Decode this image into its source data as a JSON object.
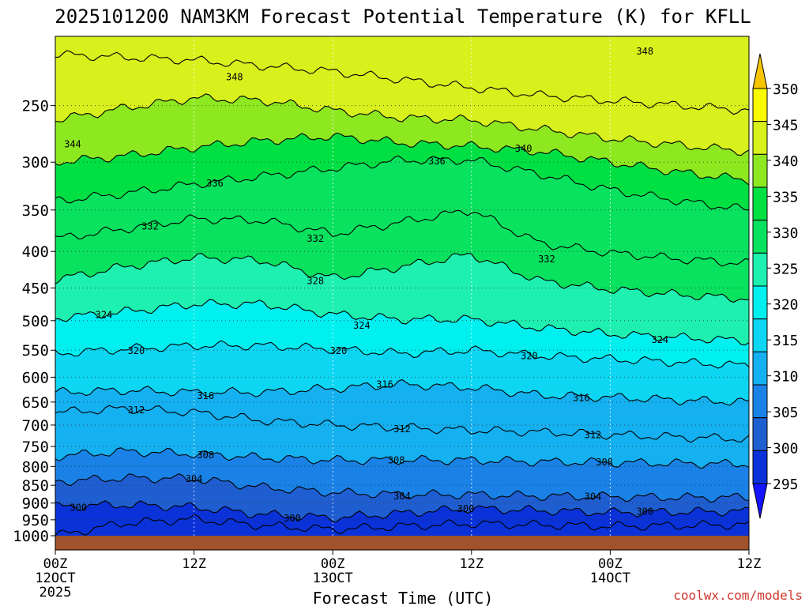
{
  "chart_data": {
    "type": "heatmap",
    "title": "2025101200 NAM3KM Forecast Potential Temperature (K) for KFLL",
    "xlabel": "Forecast Time (UTC)",
    "ylabel": "",
    "watermark": "coolwx.com/models",
    "x_ticks": [
      {
        "hours": 0,
        "label": "00Z",
        "sub": "12OCT",
        "sub2": "2025"
      },
      {
        "hours": 12,
        "label": "12Z",
        "sub": "",
        "sub2": ""
      },
      {
        "hours": 24,
        "label": "00Z",
        "sub": "13OCT",
        "sub2": ""
      },
      {
        "hours": 36,
        "label": "12Z",
        "sub": "",
        "sub2": ""
      },
      {
        "hours": 48,
        "label": "00Z",
        "sub": "14OCT",
        "sub2": ""
      },
      {
        "hours": 60,
        "label": "12Z",
        "sub": "",
        "sub2": ""
      }
    ],
    "xlim_hours": [
      0,
      60
    ],
    "y_ticks": [
      250,
      300,
      350,
      400,
      450,
      500,
      550,
      600,
      650,
      700,
      750,
      800,
      850,
      900,
      950,
      1000
    ],
    "ylim_hpa": [
      200,
      1000
    ],
    "y_scale": "log-pressure",
    "colorbar": {
      "levels": [
        295,
        300,
        305,
        310,
        315,
        320,
        325,
        330,
        335,
        340,
        345,
        350
      ],
      "labels": [
        "295",
        "300",
        "305",
        "310",
        "315",
        "320",
        "325",
        "330",
        "335",
        "340",
        "345",
        "350"
      ],
      "colors": [
        "#1414ff",
        "#0a32d8",
        "#1f5ed0",
        "#1a82e6",
        "#14b0f0",
        "#0cd6f2",
        "#00f0f0",
        "#1ef0b0",
        "#08e25e",
        "#00e043",
        "#8ee820",
        "#d8f01c",
        "#fafa00",
        "#f7c500"
      ]
    },
    "ground": {
      "below_hpa": 1000,
      "color": "#a0522d"
    },
    "surface_values": {
      "x_hours": [
        0,
        12,
        24,
        36,
        48,
        60
      ],
      "theta_k_at_1000hpa": [
        297,
        296,
        298,
        298,
        298,
        298
      ]
    },
    "contour_labels": [
      {
        "value": "348",
        "hours": 15.5,
        "hpa": 228
      },
      {
        "value": "348",
        "hours": 51,
        "hpa": 210
      },
      {
        "value": "344",
        "hours": 1.5,
        "hpa": 283
      },
      {
        "value": "340",
        "hours": 40.5,
        "hpa": 287
      },
      {
        "value": "336",
        "hours": 13.8,
        "hpa": 321
      },
      {
        "value": "336",
        "hours": 33,
        "hpa": 299
      },
      {
        "value": "332",
        "hours": 8.2,
        "hpa": 369
      },
      {
        "value": "332",
        "hours": 22.5,
        "hpa": 384
      },
      {
        "value": "332",
        "hours": 42.5,
        "hpa": 410
      },
      {
        "value": "328",
        "hours": 22.5,
        "hpa": 440
      },
      {
        "value": "324",
        "hours": 4.2,
        "hpa": 491
      },
      {
        "value": "324",
        "hours": 26.5,
        "hpa": 508
      },
      {
        "value": "324",
        "hours": 52.3,
        "hpa": 532
      },
      {
        "value": "320",
        "hours": 7,
        "hpa": 551
      },
      {
        "value": "320",
        "hours": 24.5,
        "hpa": 551
      },
      {
        "value": "320",
        "hours": 41,
        "hpa": 560
      },
      {
        "value": "316",
        "hours": 13,
        "hpa": 637
      },
      {
        "value": "316",
        "hours": 28.5,
        "hpa": 614
      },
      {
        "value": "316",
        "hours": 45.5,
        "hpa": 641
      },
      {
        "value": "312",
        "hours": 7,
        "hpa": 667
      },
      {
        "value": "312",
        "hours": 30,
        "hpa": 709
      },
      {
        "value": "312",
        "hours": 46.5,
        "hpa": 723
      },
      {
        "value": "308",
        "hours": 13,
        "hpa": 771
      },
      {
        "value": "308",
        "hours": 29.5,
        "hpa": 784
      },
      {
        "value": "308",
        "hours": 47.5,
        "hpa": 789
      },
      {
        "value": "304",
        "hours": 12,
        "hpa": 833
      },
      {
        "value": "304",
        "hours": 30,
        "hpa": 880
      },
      {
        "value": "304",
        "hours": 46.5,
        "hpa": 882
      },
      {
        "value": "300",
        "hours": 2,
        "hpa": 914
      },
      {
        "value": "300",
        "hours": 20.5,
        "hpa": 945
      },
      {
        "value": "300",
        "hours": 35.5,
        "hpa": 917
      },
      {
        "value": "300",
        "hours": 51,
        "hpa": 925
      }
    ],
    "isotherms": [
      {
        "value": 346,
        "x_hours": [
          0,
          6,
          12,
          18,
          24,
          30,
          36,
          42,
          48,
          54,
          60
        ],
        "hpa": [
          212,
          214,
          216,
          220,
          224,
          230,
          236,
          242,
          246,
          250,
          254
        ]
      },
      {
        "value": 344,
        "x_hours": [
          0,
          6,
          12,
          18,
          24,
          30,
          36,
          42,
          48,
          54,
          60
        ],
        "hpa": [
          262,
          252,
          244,
          246,
          254,
          260,
          262,
          270,
          278,
          284,
          290
        ]
      },
      {
        "value": 340,
        "x_hours": [
          0,
          6,
          12,
          18,
          24,
          30,
          36,
          42,
          48,
          54,
          60
        ],
        "hpa": [
          300,
          294,
          286,
          280,
          276,
          282,
          285,
          290,
          300,
          310,
          318
        ]
      },
      {
        "value": 336,
        "x_hours": [
          0,
          6,
          12,
          18,
          24,
          30,
          36,
          42,
          48,
          54,
          60
        ],
        "hpa": [
          340,
          332,
          322,
          314,
          306,
          298,
          298,
          312,
          328,
          340,
          350
        ]
      },
      {
        "value": 332,
        "x_hours": [
          0,
          6,
          12,
          18,
          24,
          30,
          36,
          42,
          48,
          54,
          60
        ],
        "hpa": [
          384,
          372,
          360,
          362,
          378,
          364,
          350,
          390,
          402,
          410,
          416
        ]
      },
      {
        "value": 328,
        "x_hours": [
          0,
          6,
          12,
          18,
          24,
          30,
          36,
          42,
          48,
          54,
          60
        ],
        "hpa": [
          438,
          420,
          408,
          412,
          436,
          420,
          404,
          440,
          452,
          460,
          466
        ]
      },
      {
        "value": 324,
        "x_hours": [
          0,
          6,
          12,
          18,
          24,
          30,
          36,
          42,
          48,
          54,
          60
        ],
        "hpa": [
          496,
          486,
          474,
          474,
          490,
          498,
          498,
          512,
          522,
          528,
          534
        ]
      },
      {
        "value": 320,
        "x_hours": [
          0,
          6,
          12,
          18,
          24,
          30,
          36,
          42,
          48,
          54,
          60
        ],
        "hpa": [
          556,
          548,
          542,
          542,
          548,
          556,
          550,
          560,
          566,
          572,
          578
        ]
      },
      {
        "value": 316,
        "x_hours": [
          0,
          6,
          12,
          18,
          24,
          30,
          36,
          42,
          48,
          54,
          60
        ],
        "hpa": [
          630,
          626,
          630,
          630,
          622,
          614,
          620,
          636,
          640,
          646,
          650
        ]
      },
      {
        "value": 312,
        "x_hours": [
          0,
          6,
          12,
          18,
          24,
          30,
          36,
          42,
          48,
          54,
          60
        ],
        "hpa": [
          672,
          664,
          672,
          690,
          700,
          706,
          712,
          716,
          722,
          728,
          732
        ]
      },
      {
        "value": 308,
        "x_hours": [
          0,
          6,
          12,
          18,
          24,
          30,
          36,
          42,
          48,
          54,
          60
        ],
        "hpa": [
          774,
          762,
          768,
          778,
          784,
          784,
          784,
          788,
          790,
          792,
          794
        ]
      },
      {
        "value": 304,
        "x_hours": [
          0,
          6,
          12,
          18,
          24,
          30,
          36,
          42,
          48,
          54,
          60
        ],
        "hpa": [
          840,
          830,
          832,
          856,
          870,
          876,
          876,
          880,
          882,
          884,
          884
        ]
      },
      {
        "value": 300,
        "x_hours": [
          0,
          6,
          12,
          18,
          24,
          30,
          36,
          42,
          48,
          54,
          60
        ],
        "hpa": [
          910,
          905,
          912,
          934,
          944,
          930,
          916,
          922,
          928,
          926,
          924
        ]
      },
      {
        "value": 298,
        "x_hours": [
          0,
          6,
          12,
          18,
          24,
          30,
          36,
          42,
          48,
          54,
          60
        ],
        "hpa": [
          1000,
          960,
          948,
          968,
          980,
          970,
          962,
          966,
          970,
          968,
          965
        ]
      }
    ]
  }
}
